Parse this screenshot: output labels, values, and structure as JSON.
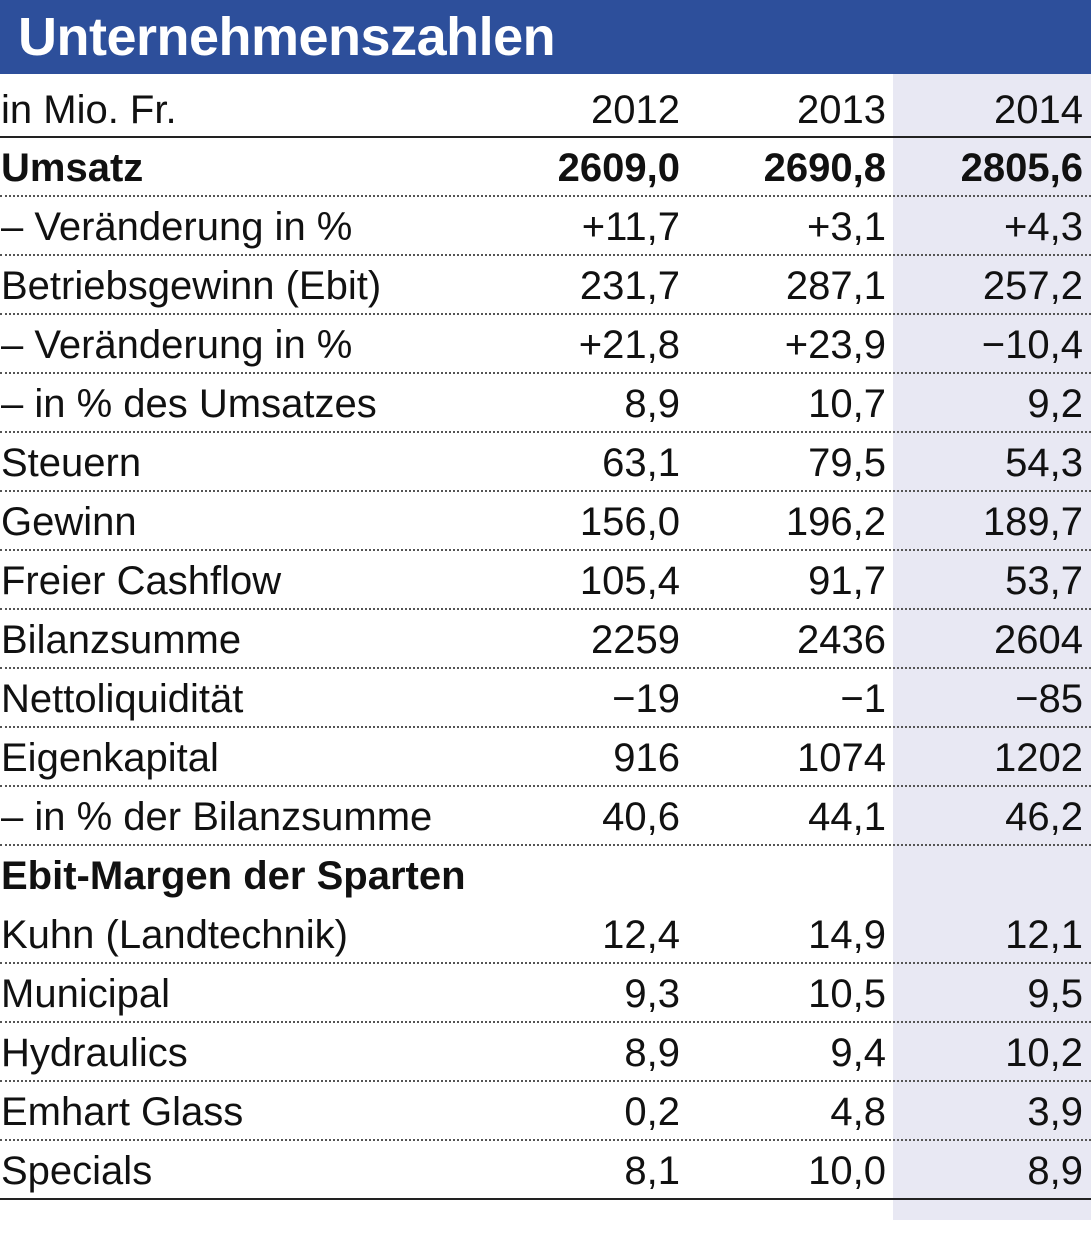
{
  "title": "Unternehmenszahlen",
  "header": {
    "label": "in Mio. Fr.",
    "years": [
      "2012",
      "2013",
      "2014"
    ]
  },
  "rows": [
    {
      "label": "Umsatz",
      "v2012": "2609,0",
      "v2013": "2690,8",
      "v2014": "2805,6"
    },
    {
      "label": "– Veränderung in %",
      "v2012": "+11,7",
      "v2013": "+3,1",
      "v2014": "+4,3"
    },
    {
      "label": "Betriebsgewinn (Ebit)",
      "v2012": "231,7",
      "v2013": "287,1",
      "v2014": "257,2"
    },
    {
      "label": "– Veränderung in %",
      "v2012": "+21,8",
      "v2013": "+23,9",
      "v2014": "−10,4"
    },
    {
      "label": "– in % des Umsatzes",
      "v2012": "8,9",
      "v2013": "10,7",
      "v2014": "9,2"
    },
    {
      "label": "Steuern",
      "v2012": "63,1",
      "v2013": "79,5",
      "v2014": "54,3"
    },
    {
      "label": "Gewinn",
      "v2012": "156,0",
      "v2013": "196,2",
      "v2014": "189,7"
    },
    {
      "label": "Freier Cashflow",
      "v2012": "105,4",
      "v2013": "91,7",
      "v2014": "53,7"
    },
    {
      "label": "Bilanzsumme",
      "v2012": "2259",
      "v2013": "2436",
      "v2014": "2604"
    },
    {
      "label": "Nettoliquidität",
      "v2012": "−19",
      "v2013": "−1",
      "v2014": "−85"
    },
    {
      "label": "Eigenkapital",
      "v2012": "916",
      "v2013": "1074",
      "v2014": "1202"
    },
    {
      "label": "– in % der Bilanzsumme",
      "v2012": "40,6",
      "v2013": "44,1",
      "v2014": "46,2"
    }
  ],
  "section": {
    "title": "Ebit-Margen der Sparten",
    "rows": [
      {
        "label": "Kuhn (Landtechnik)",
        "v2012": "12,4",
        "v2013": "14,9",
        "v2014": "12,1"
      },
      {
        "label": "Municipal",
        "v2012": "9,3",
        "v2013": "10,5",
        "v2014": "9,5"
      },
      {
        "label": "Hydraulics",
        "v2012": "8,9",
        "v2013": "9,4",
        "v2014": "10,2"
      },
      {
        "label": "Emhart Glass",
        "v2012": "0,2",
        "v2013": "4,8",
        "v2014": "3,9"
      },
      {
        "label": "Specials",
        "v2012": "8,1",
        "v2013": "10,0",
        "v2014": "8,9"
      }
    ]
  },
  "colors": {
    "title_bar": "#2d4f9b",
    "highlight_column": "#e8e8f3"
  }
}
